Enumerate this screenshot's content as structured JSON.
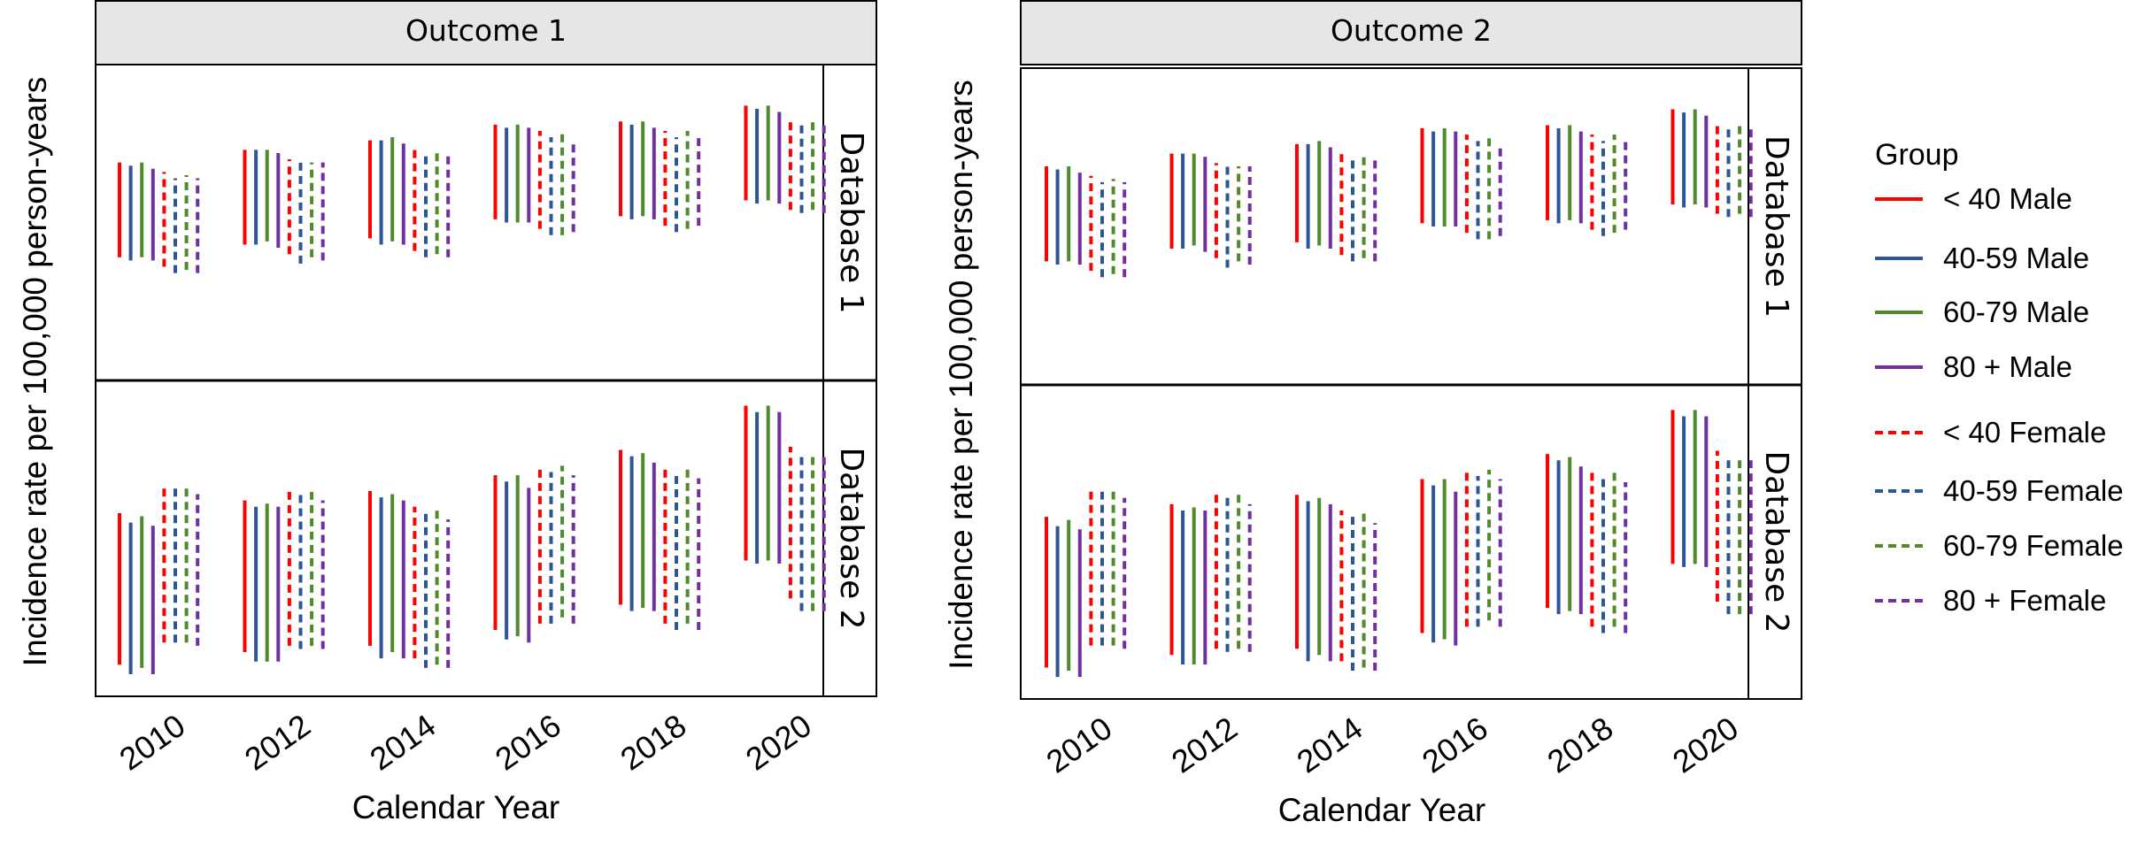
{
  "chart_data": {
    "type": "range",
    "ylabel": "Incidence rate per 100,000 person-years",
    "xlabel": "Calendar Year",
    "x_ticks": [
      "2010",
      "2012",
      "2014",
      "2016",
      "2018",
      "2020"
    ],
    "years": [
      2010,
      2012,
      2014,
      2016,
      2018,
      2020
    ],
    "y_ticks_shown": false,
    "ylim": [
      0,
      10
    ],
    "legend": {
      "title": "Group",
      "placement": "right",
      "entries": [
        {
          "label": "< 40 Male",
          "color": "#ff0000",
          "dashed": false
        },
        {
          "label": "40-59 Male",
          "color": "#2e5596",
          "dashed": false
        },
        {
          "label": "60-79 Male",
          "color": "#4f8a2b",
          "dashed": false
        },
        {
          "label": "80 + Male",
          "color": "#7030a0",
          "dashed": false
        },
        {
          "label": "< 40 Female",
          "color": "#ff0000",
          "dashed": true
        },
        {
          "label": "40-59 Female",
          "color": "#2e5596",
          "dashed": true
        },
        {
          "label": "60-79 Female",
          "color": "#4f8a2b",
          "dashed": true
        },
        {
          "label": "80 + Female",
          "color": "#7030a0",
          "dashed": true
        }
      ]
    },
    "panels": [
      {
        "outcome": "Outcome 1",
        "database": "Database 1",
        "ranges": [
          [
            [
              3.9,
              6.9
            ],
            [
              3.8,
              6.8
            ],
            [
              3.9,
              6.9
            ],
            [
              3.8,
              6.7
            ],
            [
              3.6,
              6.6
            ],
            [
              3.4,
              6.4
            ],
            [
              3.5,
              6.5
            ],
            [
              3.4,
              6.4
            ]
          ],
          [
            [
              4.3,
              7.3
            ],
            [
              4.3,
              7.3
            ],
            [
              4.4,
              7.3
            ],
            [
              4.2,
              7.2
            ],
            [
              4.0,
              7.0
            ],
            [
              3.7,
              6.9
            ],
            [
              3.9,
              6.9
            ],
            [
              3.8,
              6.9
            ]
          ],
          [
            [
              4.5,
              7.6
            ],
            [
              4.3,
              7.6
            ],
            [
              4.4,
              7.7
            ],
            [
              4.3,
              7.5
            ],
            [
              4.1,
              7.3
            ],
            [
              3.9,
              7.2
            ],
            [
              4.0,
              7.3
            ],
            [
              3.9,
              7.1
            ]
          ],
          [
            [
              5.1,
              8.1
            ],
            [
              5.0,
              8.0
            ],
            [
              5.0,
              8.1
            ],
            [
              5.0,
              8.0
            ],
            [
              4.8,
              7.9
            ],
            [
              4.6,
              7.7
            ],
            [
              4.6,
              7.8
            ],
            [
              4.7,
              7.6
            ]
          ],
          [
            [
              5.2,
              8.2
            ],
            [
              5.1,
              8.1
            ],
            [
              5.2,
              8.2
            ],
            [
              5.1,
              8.0
            ],
            [
              4.9,
              7.9
            ],
            [
              4.7,
              7.7
            ],
            [
              4.8,
              7.9
            ],
            [
              4.9,
              7.8
            ]
          ],
          [
            [
              5.7,
              8.7
            ],
            [
              5.6,
              8.6
            ],
            [
              5.7,
              8.7
            ],
            [
              5.6,
              8.5
            ],
            [
              5.4,
              8.3
            ],
            [
              5.3,
              8.2
            ],
            [
              5.4,
              8.3
            ],
            [
              5.3,
              8.2
            ]
          ]
        ]
      },
      {
        "outcome": "Outcome 1",
        "database": "Database 2",
        "ranges": [
          [
            [
              1.0,
              5.8
            ],
            [
              0.7,
              5.5
            ],
            [
              0.9,
              5.7
            ],
            [
              0.7,
              5.4
            ],
            [
              1.7,
              6.6
            ],
            [
              1.7,
              6.6
            ],
            [
              1.7,
              6.6
            ],
            [
              1.6,
              6.4
            ]
          ],
          [
            [
              1.4,
              6.2
            ],
            [
              1.1,
              6.0
            ],
            [
              1.1,
              6.1
            ],
            [
              1.1,
              6.0
            ],
            [
              1.6,
              6.6
            ],
            [
              1.5,
              6.4
            ],
            [
              1.6,
              6.6
            ],
            [
              1.5,
              6.2
            ]
          ],
          [
            [
              1.6,
              6.5
            ],
            [
              1.2,
              6.3
            ],
            [
              1.4,
              6.4
            ],
            [
              1.2,
              6.2
            ],
            [
              1.2,
              6.0
            ],
            [
              0.9,
              5.8
            ],
            [
              1.0,
              5.9
            ],
            [
              0.9,
              5.6
            ]
          ],
          [
            [
              2.1,
              7.0
            ],
            [
              1.8,
              6.8
            ],
            [
              1.9,
              7.0
            ],
            [
              1.7,
              6.6
            ],
            [
              2.3,
              7.2
            ],
            [
              2.3,
              7.1
            ],
            [
              2.5,
              7.3
            ],
            [
              2.3,
              7.0
            ]
          ],
          [
            [
              2.9,
              7.8
            ],
            [
              2.7,
              7.6
            ],
            [
              2.8,
              7.7
            ],
            [
              2.7,
              7.4
            ],
            [
              2.3,
              7.2
            ],
            [
              2.1,
              7.0
            ],
            [
              2.3,
              7.2
            ],
            [
              2.1,
              6.9
            ]
          ],
          [
            [
              4.3,
              9.2
            ],
            [
              4.2,
              9.0
            ],
            [
              4.3,
              9.2
            ],
            [
              4.2,
              9.0
            ],
            [
              3.1,
              7.9
            ],
            [
              2.7,
              7.6
            ],
            [
              2.7,
              7.6
            ],
            [
              2.7,
              7.6
            ]
          ]
        ]
      },
      {
        "outcome": "Outcome 2",
        "database": "Database 1",
        "ranges": [
          [
            [
              3.9,
              6.9
            ],
            [
              3.8,
              6.8
            ],
            [
              3.9,
              6.9
            ],
            [
              3.8,
              6.7
            ],
            [
              3.6,
              6.6
            ],
            [
              3.4,
              6.4
            ],
            [
              3.5,
              6.5
            ],
            [
              3.4,
              6.4
            ]
          ],
          [
            [
              4.3,
              7.3
            ],
            [
              4.3,
              7.3
            ],
            [
              4.4,
              7.3
            ],
            [
              4.2,
              7.2
            ],
            [
              4.0,
              7.0
            ],
            [
              3.7,
              6.9
            ],
            [
              3.9,
              6.9
            ],
            [
              3.8,
              6.9
            ]
          ],
          [
            [
              4.5,
              7.6
            ],
            [
              4.3,
              7.6
            ],
            [
              4.4,
              7.7
            ],
            [
              4.3,
              7.5
            ],
            [
              4.1,
              7.3
            ],
            [
              3.9,
              7.2
            ],
            [
              4.0,
              7.3
            ],
            [
              3.9,
              7.1
            ]
          ],
          [
            [
              5.1,
              8.1
            ],
            [
              5.0,
              8.0
            ],
            [
              5.0,
              8.1
            ],
            [
              5.0,
              8.0
            ],
            [
              4.8,
              7.9
            ],
            [
              4.6,
              7.7
            ],
            [
              4.6,
              7.8
            ],
            [
              4.7,
              7.6
            ]
          ],
          [
            [
              5.2,
              8.2
            ],
            [
              5.1,
              8.1
            ],
            [
              5.2,
              8.2
            ],
            [
              5.1,
              8.0
            ],
            [
              4.9,
              7.9
            ],
            [
              4.7,
              7.7
            ],
            [
              4.8,
              7.9
            ],
            [
              4.9,
              7.8
            ]
          ],
          [
            [
              5.7,
              8.7
            ],
            [
              5.6,
              8.6
            ],
            [
              5.7,
              8.7
            ],
            [
              5.6,
              8.5
            ],
            [
              5.4,
              8.3
            ],
            [
              5.3,
              8.2
            ],
            [
              5.4,
              8.3
            ],
            [
              5.3,
              8.2
            ]
          ]
        ]
      },
      {
        "outcome": "Outcome 2",
        "database": "Database 2",
        "ranges": [
          [
            [
              1.0,
              5.8
            ],
            [
              0.7,
              5.5
            ],
            [
              0.9,
              5.7
            ],
            [
              0.7,
              5.4
            ],
            [
              1.7,
              6.6
            ],
            [
              1.7,
              6.6
            ],
            [
              1.7,
              6.6
            ],
            [
              1.6,
              6.4
            ]
          ],
          [
            [
              1.4,
              6.2
            ],
            [
              1.1,
              6.0
            ],
            [
              1.1,
              6.1
            ],
            [
              1.1,
              6.0
            ],
            [
              1.6,
              6.6
            ],
            [
              1.5,
              6.4
            ],
            [
              1.6,
              6.6
            ],
            [
              1.5,
              6.2
            ]
          ],
          [
            [
              1.6,
              6.5
            ],
            [
              1.2,
              6.3
            ],
            [
              1.4,
              6.4
            ],
            [
              1.2,
              6.2
            ],
            [
              1.2,
              6.0
            ],
            [
              0.9,
              5.8
            ],
            [
              1.0,
              5.9
            ],
            [
              0.9,
              5.6
            ]
          ],
          [
            [
              2.1,
              7.0
            ],
            [
              1.8,
              6.8
            ],
            [
              1.9,
              7.0
            ],
            [
              1.7,
              6.6
            ],
            [
              2.3,
              7.2
            ],
            [
              2.3,
              7.1
            ],
            [
              2.5,
              7.3
            ],
            [
              2.3,
              7.0
            ]
          ],
          [
            [
              2.9,
              7.8
            ],
            [
              2.7,
              7.6
            ],
            [
              2.8,
              7.7
            ],
            [
              2.7,
              7.4
            ],
            [
              2.3,
              7.2
            ],
            [
              2.1,
              7.0
            ],
            [
              2.3,
              7.2
            ],
            [
              2.1,
              6.9
            ]
          ],
          [
            [
              4.3,
              9.2
            ],
            [
              4.2,
              9.0
            ],
            [
              4.3,
              9.2
            ],
            [
              4.2,
              9.0
            ],
            [
              3.1,
              7.9
            ],
            [
              2.7,
              7.6
            ],
            [
              2.7,
              7.6
            ],
            [
              2.7,
              7.6
            ]
          ]
        ]
      }
    ]
  }
}
